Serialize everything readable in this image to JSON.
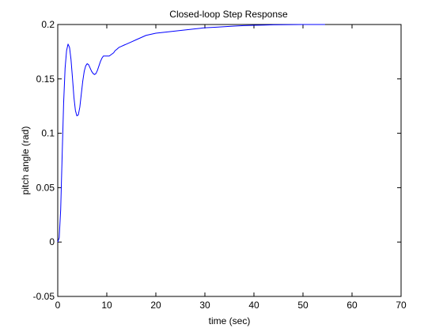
{
  "chart_data": {
    "type": "line",
    "title": "Closed-loop Step Response",
    "xlabel": "time (sec)",
    "ylabel": "pitch angle (rad)",
    "xlim": [
      0,
      70
    ],
    "ylim": [
      -0.05,
      0.2
    ],
    "xticks": [
      0,
      10,
      20,
      30,
      40,
      50,
      60,
      70
    ],
    "xtick_labels": [
      "0",
      "10",
      "20",
      "30",
      "40",
      "50",
      "60",
      "70"
    ],
    "yticks": [
      -0.05,
      0,
      0.05,
      0.1,
      0.15,
      0.2
    ],
    "ytick_labels": [
      "-0.05",
      "0",
      "0.05",
      "0.1",
      "0.15",
      "0.2"
    ],
    "grid": false,
    "series": [
      {
        "color": "#0000ff",
        "x": [
          0,
          0.3,
          0.6,
          0.9,
          1.2,
          1.5,
          1.8,
          2.1,
          2.4,
          2.7,
          3.0,
          3.3,
          3.6,
          3.9,
          4.2,
          4.5,
          4.8,
          5.1,
          5.4,
          5.7,
          6.0,
          6.3,
          6.6,
          6.9,
          7.2,
          7.5,
          7.8,
          8.1,
          8.4,
          8.7,
          9.0,
          9.3,
          9.6,
          9.9,
          10.2,
          10.5,
          10.8,
          11.1,
          11.4,
          11.7,
          12.0,
          12.5,
          13.0,
          13.5,
          14.0,
          15.0,
          16.0,
          17.0,
          18.0,
          20.0,
          22.0,
          24.0,
          26.0,
          28.0,
          30.0,
          32.0,
          34.0,
          36.0,
          38.0,
          40.0,
          42.0,
          44.0,
          46.0,
          48.0,
          50.0,
          52.0,
          54.5
        ],
        "y": [
          0,
          0.004,
          0.03,
          0.08,
          0.128,
          0.16,
          0.176,
          0.182,
          0.179,
          0.168,
          0.151,
          0.133,
          0.121,
          0.116,
          0.117,
          0.124,
          0.136,
          0.148,
          0.157,
          0.162,
          0.164,
          0.163,
          0.16,
          0.157,
          0.155,
          0.154,
          0.155,
          0.158,
          0.162,
          0.166,
          0.169,
          0.171,
          0.171,
          0.171,
          0.171,
          0.171,
          0.172,
          0.173,
          0.174,
          0.176,
          0.177,
          0.179,
          0.18,
          0.181,
          0.182,
          0.184,
          0.186,
          0.188,
          0.19,
          0.192,
          0.193,
          0.194,
          0.195,
          0.196,
          0.197,
          0.1975,
          0.198,
          0.1985,
          0.199,
          0.1993,
          0.1995,
          0.1997,
          0.1998,
          0.1999,
          0.2,
          0.2,
          0.2
        ]
      }
    ]
  }
}
